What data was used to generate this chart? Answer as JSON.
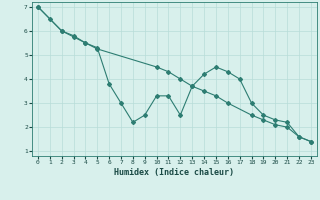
{
  "line1_x": [
    0,
    1,
    2,
    3,
    4,
    5,
    6,
    7,
    8,
    9,
    10,
    11,
    12,
    13,
    14,
    15,
    16,
    17,
    18,
    19,
    20,
    21,
    22,
    23
  ],
  "line1_y": [
    7.0,
    6.5,
    6.0,
    5.8,
    5.5,
    5.3,
    3.8,
    3.0,
    2.2,
    2.5,
    3.3,
    3.3,
    2.5,
    3.7,
    4.2,
    4.5,
    4.3,
    4.0,
    3.0,
    2.5,
    2.3,
    2.2,
    1.6,
    1.4
  ],
  "line2_x": [
    0,
    2,
    3,
    4,
    5,
    10,
    11,
    12,
    13,
    14,
    15,
    16,
    18,
    19,
    20,
    21,
    22,
    23
  ],
  "line2_y": [
    7.0,
    6.0,
    5.75,
    5.5,
    5.25,
    4.5,
    4.3,
    4.0,
    3.7,
    3.5,
    3.3,
    3.0,
    2.5,
    2.3,
    2.1,
    2.0,
    1.6,
    1.4
  ],
  "color": "#2d7d72",
  "bg_color": "#d8f0ec",
  "grid_color": "#b8ddd8",
  "grid_color_major": "#c8a0a0",
  "xlabel": "Humidex (Indice chaleur)",
  "xlim": [
    0,
    23
  ],
  "ylim": [
    1,
    7
  ],
  "yticks": [
    1,
    2,
    3,
    4,
    5,
    6,
    7
  ],
  "xticks": [
    0,
    1,
    2,
    3,
    4,
    5,
    6,
    7,
    8,
    9,
    10,
    11,
    12,
    13,
    14,
    15,
    16,
    17,
    18,
    19,
    20,
    21,
    22,
    23
  ],
  "marker": "D",
  "markersize": 2.0,
  "linewidth": 0.8
}
